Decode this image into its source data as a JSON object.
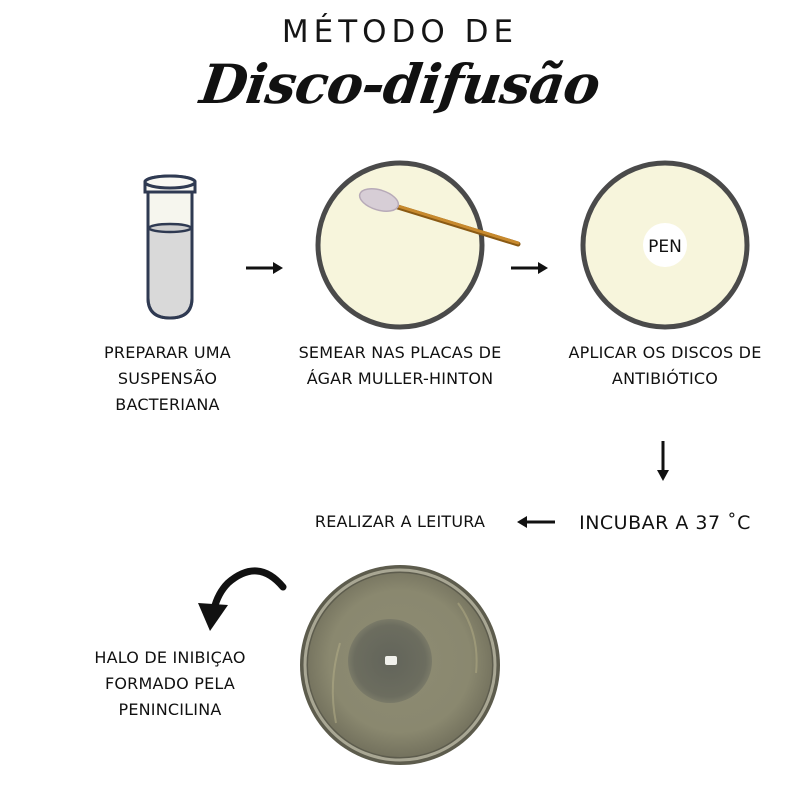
{
  "title": {
    "line1": "MÉTODO DE",
    "line2": "Disco-difusão"
  },
  "steps": [
    {
      "label": "PREPARAR UMA SUSPENSÃO BACTERIANA"
    },
    {
      "label": "SEMEAR NAS PLACAS DE ÁGAR MULLER-HINTON"
    },
    {
      "label": "APLICAR OS DISCOS DE ANTIBIÓTICO",
      "disc_label": "PEN"
    },
    {
      "label": "INCUBAR A 37 ˚C"
    },
    {
      "label": "REALIZAR A LEITURA"
    }
  ],
  "result": {
    "label": "HALO DE INIBIÇAO FORMADO PELA PENINCILINA"
  },
  "colors": {
    "agar": "#f7f5dc",
    "plate_rim": "#4a4a4a",
    "photo_agar": "#8c8a72",
    "halo": "#6b6c5e",
    "swab_handle": "#c88a2e",
    "swab_tip": "#d7ced6"
  }
}
